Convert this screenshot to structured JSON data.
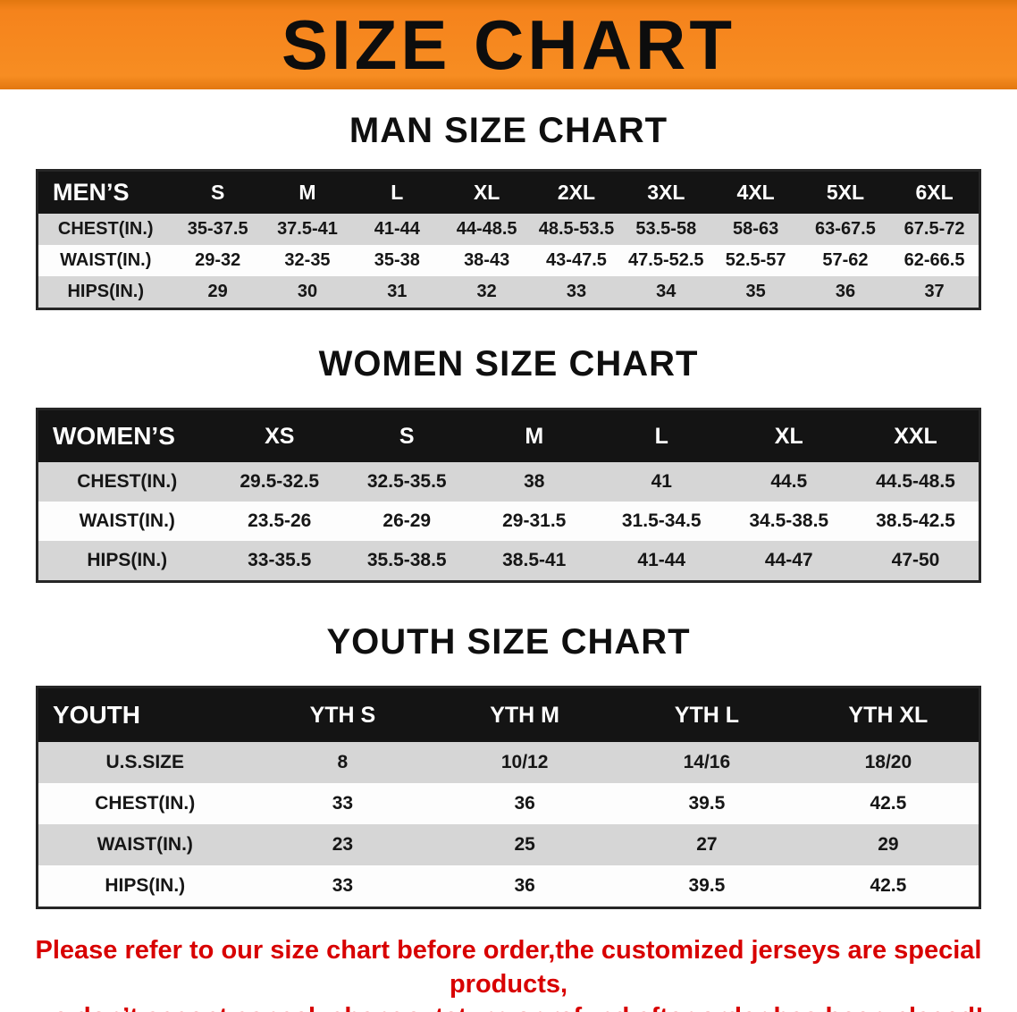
{
  "banner": {
    "title": "SIZE CHART",
    "bg_color": "#f5831c",
    "text_color": "#0d0d0d"
  },
  "colors": {
    "table_header_bg": "#141414",
    "table_header_text": "#ffffff",
    "row_stripe": "#d6d6d6",
    "notice_text": "#d80000"
  },
  "sections": [
    {
      "heading": "MAN SIZE CHART",
      "table": {
        "header_label": "MEN’S",
        "columns": [
          "S",
          "M",
          "L",
          "XL",
          "2XL",
          "3XL",
          "4XL",
          "5XL",
          "6XL"
        ],
        "rows": [
          {
            "label": "CHEST(IN.)",
            "values": [
              "35-37.5",
              "37.5-41",
              "41-44",
              "44-48.5",
              "48.5-53.5",
              "53.5-58",
              "58-63",
              "63-67.5",
              "67.5-72"
            ]
          },
          {
            "label": "WAIST(IN.)",
            "values": [
              "29-32",
              "32-35",
              "35-38",
              "38-43",
              "43-47.5",
              "47.5-52.5",
              "52.5-57",
              "57-62",
              "62-66.5"
            ]
          },
          {
            "label": "HIPS(IN.)",
            "values": [
              "29",
              "30",
              "31",
              "32",
              "33",
              "34",
              "35",
              "36",
              "37"
            ]
          }
        ]
      }
    },
    {
      "heading": "WOMEN SIZE CHART",
      "table": {
        "header_label": "WOMEN’S",
        "columns": [
          "XS",
          "S",
          "M",
          "L",
          "XL",
          "XXL"
        ],
        "rows": [
          {
            "label": "CHEST(IN.)",
            "values": [
              "29.5-32.5",
              "32.5-35.5",
              "38",
              "41",
              "44.5",
              "44.5-48.5"
            ]
          },
          {
            "label": "WAIST(IN.)",
            "values": [
              "23.5-26",
              "26-29",
              "29-31.5",
              "31.5-34.5",
              "34.5-38.5",
              "38.5-42.5"
            ]
          },
          {
            "label": "HIPS(IN.)",
            "values": [
              "33-35.5",
              "35.5-38.5",
              "38.5-41",
              "41-44",
              "44-47",
              "47-50"
            ]
          }
        ]
      }
    },
    {
      "heading": "YOUTH SIZE CHART",
      "table": {
        "header_label": "YOUTH",
        "columns": [
          "YTH S",
          "YTH M",
          "YTH L",
          "YTH XL"
        ],
        "rows": [
          {
            "label": "U.S.SIZE",
            "values": [
              "8",
              "10/12",
              "14/16",
              "18/20"
            ]
          },
          {
            "label": "CHEST(IN.)",
            "values": [
              "33",
              "36",
              "39.5",
              "42.5"
            ]
          },
          {
            "label": "WAIST(IN.)",
            "values": [
              "23",
              "25",
              "27",
              "29"
            ]
          },
          {
            "label": "HIPS(IN.)",
            "values": [
              "33",
              "36",
              "39.5",
              "42.5"
            ]
          }
        ]
      }
    }
  ],
  "footer": {
    "line1": "Please refer to our size chart before order,the customized jerseys are special products,",
    "line2": "we don’t accept cancel, change, teturn or refund after order has been placed!"
  }
}
